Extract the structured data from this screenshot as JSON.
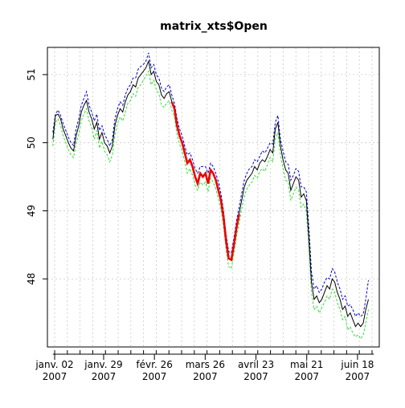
{
  "chart_data": {
    "type": "line",
    "title": "matrix_xts$Open",
    "xlabel": "",
    "ylabel": "",
    "ylim": [
      47.0,
      51.4
    ],
    "y_ticks": [
      48,
      49,
      50,
      51
    ],
    "x_range_days": [
      0,
      122
    ],
    "x_ticks": [
      {
        "day": 0,
        "label": "janv. 02",
        "year": "2007"
      },
      {
        "day": 27,
        "label": "janv. 29",
        "year": "2007"
      },
      {
        "day": 55,
        "label": "févr. 26",
        "year": "2007"
      },
      {
        "day": 83,
        "label": "mars 26",
        "year": "2007"
      },
      {
        "day": 111,
        "label": "avril 23",
        "year": "2007"
      },
      {
        "day": 139,
        "label": "mai 21",
        "year": "2007"
      },
      {
        "day": 167,
        "label": "juin 18",
        "year": "2007"
      }
    ],
    "grid": true,
    "colors": {
      "main": "#000000",
      "upper": "#0000cc",
      "lower": "#33dd33",
      "highlight": "#ee0000"
    },
    "series": [
      {
        "values": [
          50.05,
          50.4,
          50.42,
          50.35,
          50.2,
          50.1,
          50.0,
          49.92,
          49.88,
          50.1,
          50.25,
          50.45,
          50.55,
          50.62,
          50.45,
          50.35,
          50.2,
          50.3,
          50.05,
          50.15,
          50.0,
          49.95,
          49.85,
          49.95,
          50.25,
          50.4,
          50.5,
          50.45,
          50.6,
          50.7,
          50.75,
          50.85,
          50.82,
          50.95,
          51.0,
          51.05,
          51.1,
          51.2,
          51.0,
          51.05,
          50.9,
          50.85,
          50.7,
          50.65,
          50.72,
          50.75,
          50.6,
          50.5,
          50.25,
          50.1,
          50.0,
          49.85,
          49.7,
          49.75,
          49.65,
          49.5,
          49.4,
          49.55,
          49.5,
          49.55,
          49.4,
          49.6,
          49.55,
          49.45,
          49.3,
          49.15,
          48.9,
          48.55,
          48.3,
          48.28,
          48.5,
          48.75,
          48.95,
          49.15,
          49.35,
          49.45,
          49.5,
          49.55,
          49.65,
          49.6,
          49.7,
          49.75,
          49.72,
          49.8,
          49.9,
          49.85,
          50.2,
          50.3,
          49.95,
          49.75,
          49.6,
          49.55,
          49.3,
          49.4,
          49.5,
          49.45,
          49.2,
          49.25,
          49.15,
          48.6,
          47.95,
          47.7,
          47.75,
          47.65,
          47.7,
          47.8,
          47.9,
          47.85,
          48.0,
          47.95,
          47.8,
          47.7,
          47.55,
          47.6,
          47.45,
          47.5,
          47.4,
          47.3,
          47.35,
          47.3,
          47.35,
          47.55,
          47.7
        ]
      },
      {
        "values": [
          50.15,
          50.42,
          50.48,
          50.4,
          50.28,
          50.18,
          50.08,
          50.0,
          49.96,
          50.2,
          50.35,
          50.55,
          50.65,
          50.75,
          50.55,
          50.45,
          50.32,
          50.42,
          50.18,
          50.25,
          50.12,
          50.05,
          49.95,
          50.05,
          50.35,
          50.5,
          50.6,
          50.55,
          50.7,
          50.8,
          50.85,
          50.95,
          50.95,
          51.08,
          51.12,
          51.15,
          51.2,
          51.32,
          51.1,
          51.15,
          51.0,
          50.95,
          50.8,
          50.75,
          50.82,
          50.85,
          50.7,
          50.58,
          50.35,
          50.2,
          50.1,
          49.95,
          49.82,
          49.85,
          49.75,
          49.62,
          49.55,
          49.65,
          49.65,
          49.65,
          49.55,
          49.7,
          49.65,
          49.55,
          49.42,
          49.25,
          49.0,
          48.65,
          48.4,
          48.38,
          48.6,
          48.85,
          49.05,
          49.25,
          49.45,
          49.55,
          49.62,
          49.65,
          49.75,
          49.72,
          49.8,
          49.88,
          49.85,
          49.92,
          50.0,
          49.98,
          50.3,
          50.4,
          50.05,
          49.88,
          49.72,
          49.68,
          49.45,
          49.52,
          49.62,
          49.58,
          49.35,
          49.35,
          49.28,
          48.75,
          48.1,
          47.85,
          47.9,
          47.8,
          47.85,
          47.95,
          48.02,
          48.0,
          48.15,
          48.1,
          47.95,
          47.85,
          47.7,
          47.75,
          47.6,
          47.62,
          47.55,
          47.45,
          47.5,
          47.45,
          47.48,
          47.7,
          47.98
        ]
      },
      {
        "values": [
          49.95,
          50.3,
          50.35,
          50.25,
          50.1,
          50.0,
          49.9,
          49.82,
          49.78,
          49.98,
          50.12,
          50.32,
          50.42,
          50.5,
          50.32,
          50.22,
          50.05,
          50.18,
          49.92,
          50.02,
          49.88,
          49.82,
          49.72,
          49.82,
          50.12,
          50.28,
          50.38,
          50.32,
          50.45,
          50.58,
          50.62,
          50.72,
          50.68,
          50.82,
          50.85,
          50.92,
          50.98,
          51.05,
          50.85,
          50.92,
          50.78,
          50.72,
          50.55,
          50.52,
          50.58,
          50.62,
          50.48,
          50.38,
          50.12,
          49.98,
          49.88,
          49.72,
          49.55,
          49.62,
          49.52,
          49.38,
          49.3,
          49.42,
          49.38,
          49.42,
          49.28,
          49.48,
          49.42,
          49.32,
          49.18,
          49.02,
          48.78,
          48.42,
          48.18,
          48.15,
          48.38,
          48.62,
          48.82,
          49.02,
          49.22,
          49.32,
          49.38,
          49.42,
          49.52,
          49.48,
          49.58,
          49.62,
          49.58,
          49.68,
          49.78,
          49.72,
          50.05,
          50.15,
          49.82,
          49.62,
          49.45,
          49.42,
          49.15,
          49.25,
          49.35,
          49.3,
          49.05,
          49.1,
          49.0,
          48.45,
          47.8,
          47.55,
          47.6,
          47.5,
          47.58,
          47.65,
          47.75,
          47.7,
          47.85,
          47.8,
          47.65,
          47.55,
          47.4,
          47.45,
          47.25,
          47.3,
          47.2,
          47.15,
          47.18,
          47.12,
          47.18,
          47.35,
          47.55
        ]
      }
    ],
    "highlight_range_index": [
      46,
      72
    ]
  }
}
